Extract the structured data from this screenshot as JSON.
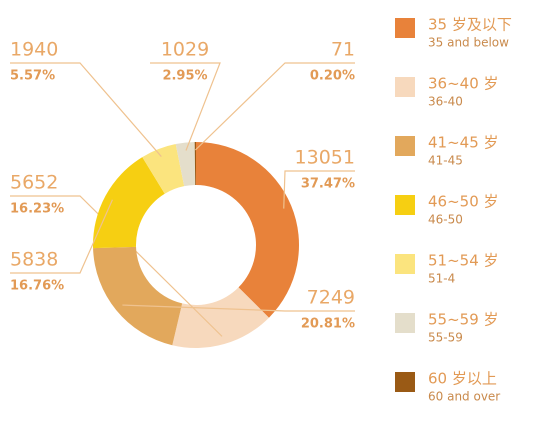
{
  "chart_data": {
    "type": "donut",
    "categories": [
      "35 岁及以下",
      "36~40 岁",
      "41~45 岁",
      "46~50 岁",
      "51~54 岁",
      "55~59 岁",
      "60 岁以上"
    ],
    "categories_en": [
      "35 and below",
      "36-40",
      "41-45",
      "46-50",
      "51-4",
      "55-59",
      "60 and over"
    ],
    "values": [
      13051,
      5652,
      7249,
      5838,
      1940,
      1029,
      71
    ],
    "percent_labels": [
      "37.47%",
      "16.23%",
      "20.81%",
      "16.76%",
      "5.57%",
      "2.95%",
      "0.20%"
    ],
    "colors": [
      "#e8823a",
      "#f7d9bd",
      "#e2a85c",
      "#f6cf12",
      "#fbe47e",
      "#e4decb",
      "#9a5a15"
    ],
    "legend": "right"
  }
}
